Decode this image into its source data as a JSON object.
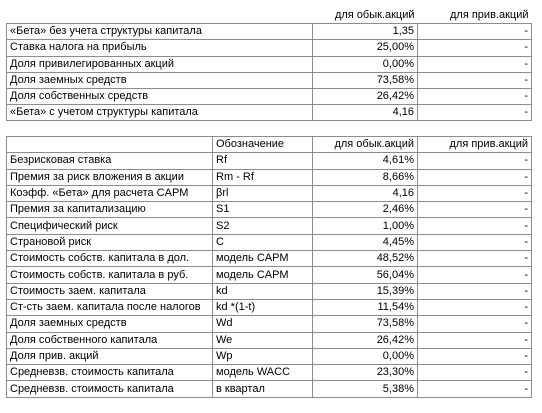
{
  "table1": {
    "header": {
      "ordinary": "для обык.акций",
      "preferred": "для прив.акций"
    },
    "rows": [
      {
        "label": "«Бета» без учета структуры капитала",
        "ordinary": "1,35",
        "preferred": "-"
      },
      {
        "label": "Ставка налога на прибыль",
        "ordinary": "25,00%",
        "preferred": "-"
      },
      {
        "label": "Доля привилегированных акций",
        "ordinary": "0,00%",
        "preferred": "-"
      },
      {
        "label": "Доля заемных средств",
        "ordinary": "73,58%",
        "preferred": "-"
      },
      {
        "label": "Доля собственных средств",
        "ordinary": "26,42%",
        "preferred": "-"
      },
      {
        "label": "«Бета» с учетом структуры капитала",
        "ordinary": "4,16",
        "preferred": "-"
      }
    ]
  },
  "table2": {
    "header": {
      "designation": "Обозначение",
      "ordinary": "для обык.акций",
      "preferred": "для прив.акций"
    },
    "rows": [
      {
        "label": "Безрисковая ставка",
        "designation": "Rf",
        "ordinary": "4,61%",
        "preferred": "-"
      },
      {
        "label": "Премия за риск вложения в акции",
        "designation": "Rm - Rf",
        "ordinary": "8,66%",
        "preferred": "-"
      },
      {
        "label": "Коэфф. «Бета» для расчета CAPM",
        "designation": "βrl",
        "ordinary": "4,16",
        "preferred": "-"
      },
      {
        "label": "Премия за капитализацию",
        "designation": "S1",
        "ordinary": "2,46%",
        "preferred": "-"
      },
      {
        "label": "Специфический риск",
        "designation": "S2",
        "ordinary": "1,00%",
        "preferred": "-"
      },
      {
        "label": "Страновой риск",
        "designation": "C",
        "ordinary": "4,45%",
        "preferred": "-"
      },
      {
        "label": "Стоимость собств. капитала в дол.",
        "designation": "модель CAPM",
        "ordinary": "48,52%",
        "preferred": "-"
      },
      {
        "label": "Стоимость собств. капитала в руб.",
        "designation": "модель CAPM",
        "ordinary": "56,04%",
        "preferred": "-"
      },
      {
        "label": "Стоимость заем. капитала",
        "designation": "kd",
        "ordinary": "15,39%",
        "preferred": "-"
      },
      {
        "label": "Ст-сть заем. капитала после налогов",
        "designation": "kd *(1-t)",
        "ordinary": "11,54%",
        "preferred": "-"
      },
      {
        "label": "Доля заемных средств",
        "designation": "Wd",
        "ordinary": "73,58%",
        "preferred": "-"
      },
      {
        "label": "Доля собственного капитала",
        "designation": "We",
        "ordinary": "26,42%",
        "preferred": "-"
      },
      {
        "label": "Доля прив. акций",
        "designation": "Wp",
        "ordinary": "0,00%",
        "preferred": "-"
      },
      {
        "label": "Средневзв. стоимость капитала",
        "designation": "модель WACC",
        "ordinary": "23,30%",
        "preferred": "-"
      },
      {
        "label": "Средневзв. стоимость капитала",
        "designation": "в квартал",
        "ordinary": "5,38%",
        "preferred": "-"
      }
    ]
  }
}
